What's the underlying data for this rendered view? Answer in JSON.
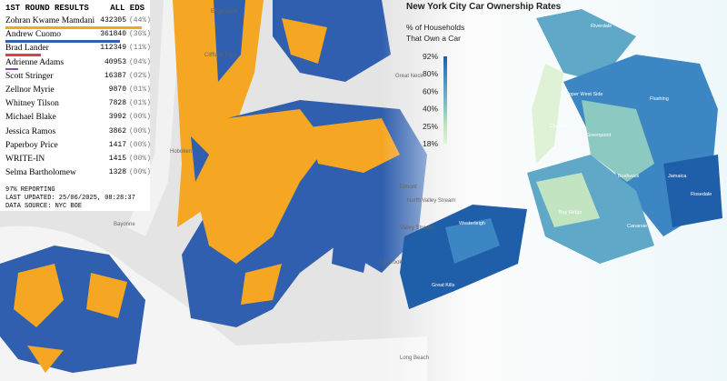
{
  "results": {
    "title": "1ST ROUND RESULTS",
    "scope": "ALL EDS",
    "rows": [
      {
        "name": "Zohran Kwame Mamdani",
        "votes": 432305,
        "share": "(44%)",
        "color": "#f5a623"
      },
      {
        "name": "Andrew Cuomo",
        "votes": 361840,
        "share": "(36%)",
        "color": "#2f5fae"
      },
      {
        "name": "Brad Lander",
        "votes": 112349,
        "share": "(11%)",
        "color": "#d9463b"
      },
      {
        "name": "Adrienne Adams",
        "votes": 40953,
        "share": "(04%)",
        "color": "#8e4fb5"
      },
      {
        "name": "Scott Stringer",
        "votes": 16387,
        "share": "(02%)"
      },
      {
        "name": "Zellnor Myrie",
        "votes": 9870,
        "share": "(01%)"
      },
      {
        "name": "Whitney Tilson",
        "votes": 7828,
        "share": "(01%)"
      },
      {
        "name": "Michael Blake",
        "votes": 3992,
        "share": "(00%)"
      },
      {
        "name": "Jessica Ramos",
        "votes": 3862,
        "share": "(00%)"
      },
      {
        "name": "Paperboy Price",
        "votes": 1417,
        "share": "(00%)"
      },
      {
        "name": "WRITE-IN",
        "votes": 1415,
        "share": "(00%)"
      },
      {
        "name": "Selma Bartholomew",
        "votes": 1328,
        "share": "(00%)"
      }
    ],
    "reporting": "97% REPORTING",
    "updated": "LAST UPDATED: 25/06/2025, 08:28:37",
    "source": "DATA SOURCE: NYC BOE"
  },
  "map_labels": [
    "Englewood",
    "Cliffside Park",
    "Hoboken",
    "Bayonne",
    "Great Neck",
    "Elmont",
    "North Valley Stream",
    "Valley Stream",
    "Lynbrook",
    "Long Beach"
  ],
  "ownership": {
    "title": "New York City Car Ownership Rates",
    "legend_title": [
      "% of Households",
      "That Own a Car"
    ],
    "legend_ticks": [
      "92%",
      "80%",
      "60%",
      "40%",
      "25%",
      "18%"
    ],
    "legend_colors": [
      "#1f5ea8",
      "#3d86c4",
      "#5fa8c8",
      "#8cc9c0",
      "#c2e4c0",
      "#e0f2d6"
    ],
    "labels": [
      "Riverdale",
      "Upper West Side",
      "Chelsea",
      "Greenpoint",
      "Bushwick",
      "Flushing",
      "Jamaica",
      "Bay Ridge",
      "Canarsie",
      "Rosedale",
      "Westerleigh",
      "Great Kills"
    ]
  }
}
